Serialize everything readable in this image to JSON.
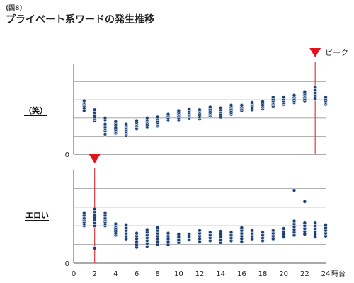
{
  "figure": {
    "tag": "(図8)",
    "title": "プライベート系ワードの発生推移",
    "peak_label": "ピーク",
    "x_unit": "時台"
  },
  "colors": {
    "dot_fill": "#1f3d6e",
    "dot_stroke": "#cfe0f2",
    "peak_line": "#e0393e",
    "peak_marker": "#e0141e",
    "grid": "#9a9a9a",
    "frame": "#555555"
  },
  "chart_data": {
    "type": "scatter",
    "x_ticks": [
      0,
      2,
      4,
      6,
      8,
      10,
      12,
      14,
      16,
      18,
      20,
      22,
      24
    ],
    "xlim": [
      0,
      24
    ],
    "xlabel": "時台",
    "panels": [
      {
        "name": "（笑）",
        "y_zero_label": "0",
        "ylim": [
          0,
          5
        ],
        "grid_y": [
          1,
          2,
          3,
          4
        ],
        "peak_hour": 23,
        "points": {
          "1": [
            2.4,
            2.55,
            2.65,
            2.75,
            2.85,
            2.95
          ],
          "2": [
            1.85,
            1.95,
            2.05,
            2.15,
            2.3,
            2.45
          ],
          "3": [
            1.1,
            1.3,
            1.4,
            1.5,
            1.65,
            1.9,
            2.0
          ],
          "4": [
            1.15,
            1.25,
            1.35,
            1.45,
            1.6,
            1.7,
            1.8
          ],
          "5": [
            1.05,
            1.15,
            1.25,
            1.35,
            1.45,
            1.55,
            1.65
          ],
          "6": [
            1.4,
            1.55,
            1.65,
            1.75,
            1.85
          ],
          "7": [
            1.5,
            1.6,
            1.7,
            1.8,
            1.9,
            2.0
          ],
          "8": [
            1.55,
            1.65,
            1.75,
            1.85,
            1.95,
            2.05
          ],
          "9": [
            1.9,
            2.0,
            2.1,
            2.2
          ],
          "10": [
            1.9,
            2.0,
            2.1,
            2.2,
            2.3,
            2.4
          ],
          "11": [
            2.0,
            2.1,
            2.2,
            2.3,
            2.4,
            2.5
          ],
          "12": [
            1.95,
            2.05,
            2.15,
            2.25,
            2.35,
            2.45
          ],
          "13": [
            2.1,
            2.2,
            2.3,
            2.4,
            2.5,
            2.6
          ],
          "14": [
            2.05,
            2.15,
            2.25,
            2.35,
            2.45,
            2.55
          ],
          "15": [
            2.2,
            2.3,
            2.4,
            2.5,
            2.6,
            2.7
          ],
          "16": [
            2.4,
            2.5,
            2.6,
            2.7
          ],
          "17": [
            2.45,
            2.55,
            2.65,
            2.75,
            2.85
          ],
          "18": [
            2.5,
            2.6,
            2.7,
            2.8,
            2.9
          ],
          "19": [
            2.65,
            2.75,
            2.85,
            2.95,
            3.05,
            3.15
          ],
          "20": [
            2.75,
            2.85,
            2.95,
            3.05,
            3.15
          ],
          "21": [
            2.85,
            2.95,
            3.05,
            3.15,
            3.25
          ],
          "22": [
            2.95,
            3.05,
            3.15,
            3.25,
            3.35,
            3.45
          ],
          "23": [
            3.05,
            3.2,
            3.3,
            3.4,
            3.55,
            3.7
          ],
          "24": [
            2.75,
            2.85,
            2.95,
            3.05,
            3.15
          ]
        }
      },
      {
        "name": "エロい",
        "y_zero_label": "0",
        "ylim": [
          0,
          5
        ],
        "grid_y": [
          1,
          2,
          3,
          4
        ],
        "peak_hour": 2,
        "points": {
          "1": [
            2.0,
            2.1,
            2.2,
            2.3,
            2.4,
            2.55,
            2.7
          ],
          "2": [
            0.8,
            2.0,
            2.15,
            2.3,
            2.45,
            2.6,
            2.75,
            2.9
          ],
          "3": [
            2.0,
            2.1,
            2.2,
            2.3,
            2.4,
            2.55,
            2.7
          ],
          "4": [
            1.5,
            1.6,
            1.7,
            1.8,
            1.9,
            2.0,
            2.1
          ],
          "5": [
            1.3,
            1.45,
            1.6,
            1.75,
            1.9,
            2.05
          ],
          "6": [
            0.85,
            1.0,
            1.15,
            1.3,
            1.45,
            1.6
          ],
          "7": [
            0.9,
            1.05,
            1.2,
            1.35,
            1.5,
            1.65,
            1.8
          ],
          "8": [
            1.0,
            1.15,
            1.3,
            1.45,
            1.6,
            1.75,
            1.9
          ],
          "9": [
            1.0,
            1.15,
            1.3,
            1.45,
            1.6
          ],
          "10": [
            1.1,
            1.25,
            1.4,
            1.55
          ],
          "11": [
            1.25,
            1.4,
            1.55
          ],
          "12": [
            1.15,
            1.3,
            1.45,
            1.6,
            1.75
          ],
          "13": [
            1.2,
            1.35,
            1.5,
            1.65
          ],
          "14": [
            1.1,
            1.25,
            1.4,
            1.55,
            1.7
          ],
          "15": [
            1.2,
            1.35,
            1.5,
            1.65
          ],
          "16": [
            1.15,
            1.3,
            1.45,
            1.6,
            1.75,
            1.9
          ],
          "17": [
            1.3,
            1.45,
            1.6,
            1.75
          ],
          "18": [
            1.2,
            1.35,
            1.5,
            1.65
          ],
          "19": [
            1.3,
            1.45,
            1.6,
            1.75
          ],
          "20": [
            1.4,
            1.55,
            1.7,
            1.85
          ],
          "21": [
            1.5,
            1.65,
            1.8,
            1.95,
            2.1,
            2.25,
            3.9
          ],
          "22": [
            1.55,
            1.7,
            1.85,
            2.0,
            2.15,
            3.3
          ],
          "23": [
            1.4,
            1.55,
            1.7,
            1.85,
            2.0,
            2.15
          ],
          "24": [
            1.45,
            1.6,
            1.75,
            1.9,
            2.05
          ]
        }
      }
    ]
  }
}
